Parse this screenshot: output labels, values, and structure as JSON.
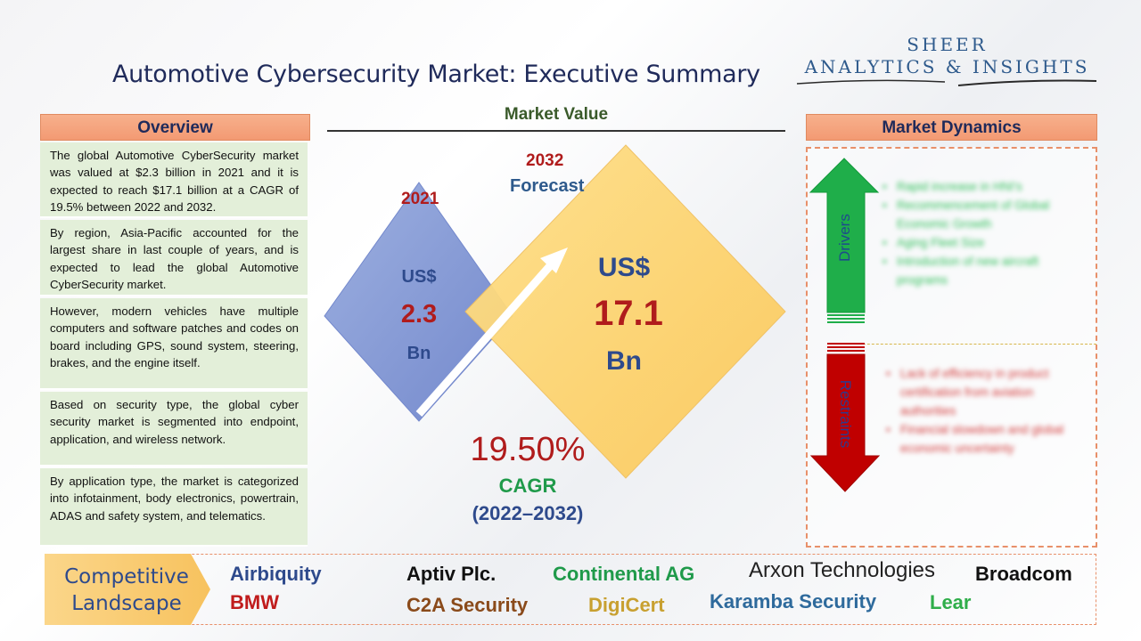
{
  "title": "Automotive Cybersecurity Market: Executive Summary",
  "logo": {
    "line1": "SHEER",
    "line2": "ANALYTICS & INSIGHTS"
  },
  "overview": {
    "header": "Overview",
    "paragraphs": [
      "The global Automotive CyberSecurity market was valued at $2.3 billion in 2021 and it is expected to reach $17.1 billion at a CAGR of 19.5% between 2022 and 2032.",
      "By region, Asia-Pacific accounted for the largest share in last couple of years, and is expected to lead the global Automotive CyberSecurity market.",
      "However, modern vehicles have multiple computers and software patches and codes on board including GPS, sound system, steering, brakes, and the engine itself.",
      "Based on security type, the global cyber security market is segmented into endpoint, application, and wireless network.",
      "By application type, the market is categorized into infotainment, body electronics, powertrain, ADAS and safety system, and telematics."
    ]
  },
  "market_value": {
    "title": "Market Value",
    "base": {
      "year": "2021",
      "currency": "US$",
      "value": "2.3",
      "unit": "Bn"
    },
    "forecast": {
      "year": "2032",
      "label": "Forecast",
      "currency": "US$",
      "value": "17.1",
      "unit": "Bn"
    },
    "cagr": {
      "value": "19.50%",
      "label": "CAGR",
      "range": "(2022–2032)"
    }
  },
  "market_dynamics": {
    "header": "Market Dynamics",
    "drivers_label": "Drivers",
    "restraints_label": "Restraints",
    "drivers": [
      "Rapid increase in HNI's",
      "Recommencement of Global Economic Growth",
      "Aging Fleet Size",
      "Introduction of new aircraft programs"
    ],
    "restraints": [
      "Lack of efficiency in product certification from aviation authorities",
      "Financial slowdown and global economic uncertainty"
    ]
  },
  "competitive_landscape": {
    "label_line1": "Competitive",
    "label_line2": "Landscape",
    "companies": [
      {
        "name": "Airbiquity",
        "color": "#2e4a8c"
      },
      {
        "name": "Aptiv Plc.",
        "color": "#111111"
      },
      {
        "name": "Continental AG",
        "color": "#1f9a4a"
      },
      {
        "name": "Arxon Technologies",
        "color": "#222222"
      },
      {
        "name": "Broadcom",
        "color": "#111111"
      },
      {
        "name": "BMW",
        "color": "#c01c1c"
      },
      {
        "name": "C2A Security",
        "color": "#8a4a1a"
      },
      {
        "name": "DigiCert",
        "color": "#c8a030"
      },
      {
        "name": "Karamba Security",
        "color": "#2e6a9c"
      },
      {
        "name": "Lear",
        "color": "#2fae4a"
      }
    ]
  },
  "colors": {
    "accent_orange": "#f39a73",
    "overview_bg": "#e3efd9",
    "driver_green": "#1fae4a",
    "restraint_red": "#c00000"
  }
}
